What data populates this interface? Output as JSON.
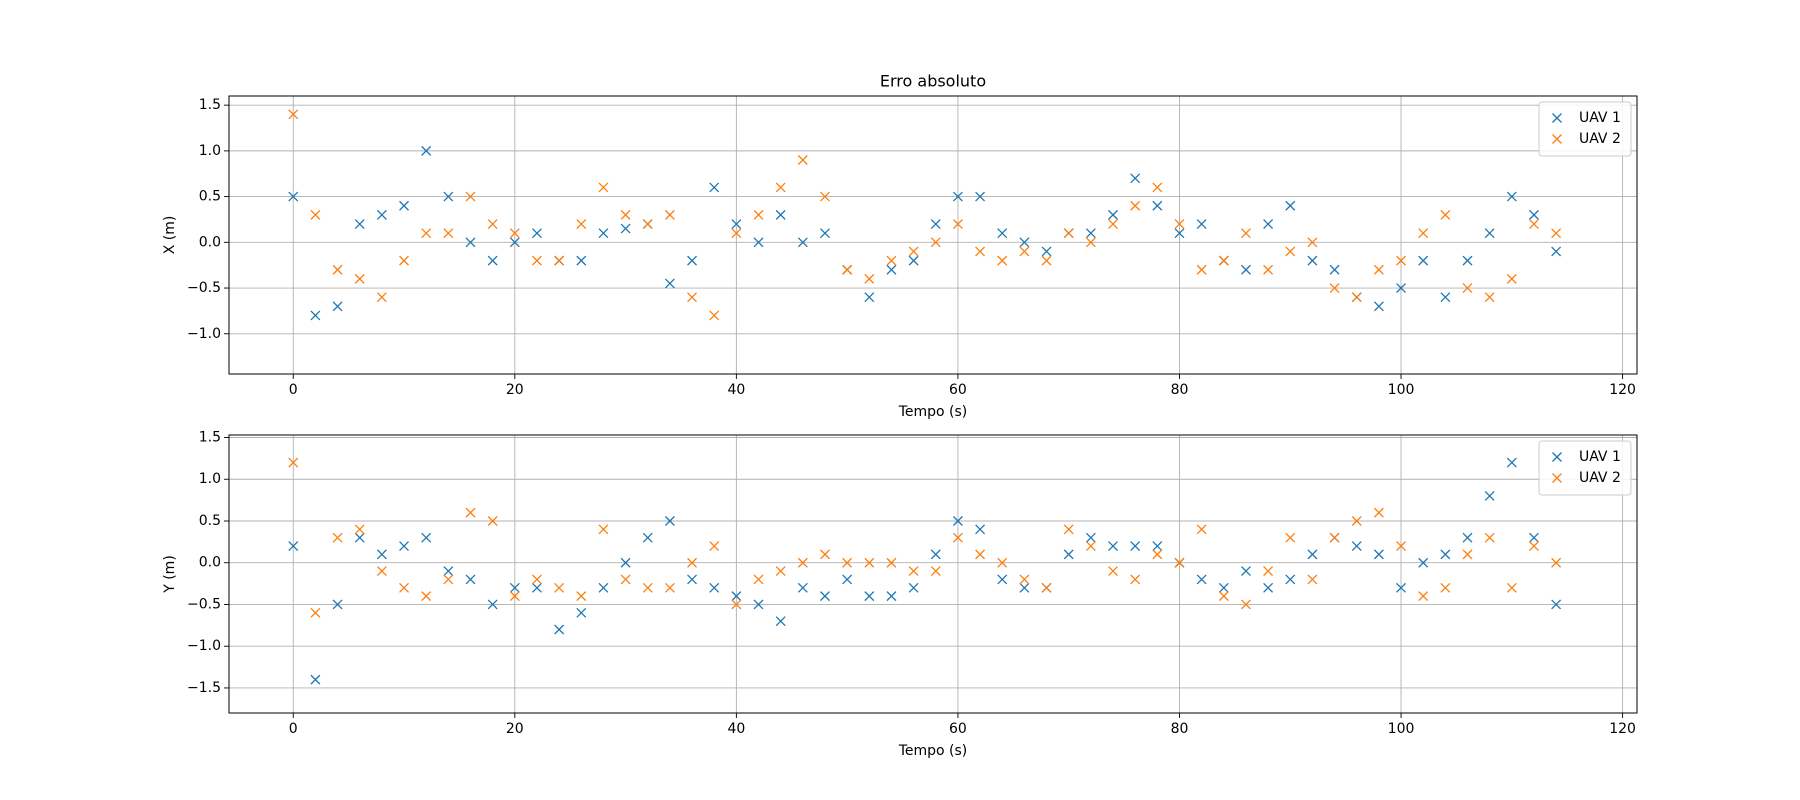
{
  "chart_data": [
    {
      "type": "scatter",
      "title": "Erro absoluto",
      "xlabel": "Tempo (s)",
      "ylabel": "X (m)",
      "x": [
        0,
        2,
        4,
        6,
        8,
        10,
        12,
        14,
        16,
        18,
        20,
        22,
        24,
        26,
        28,
        30,
        32,
        34,
        36,
        38,
        40,
        42,
        44,
        46,
        48,
        50,
        52,
        54,
        56,
        58,
        60,
        62,
        64,
        66,
        68,
        70,
        72,
        74,
        76,
        78,
        80,
        82,
        84,
        86,
        88,
        90,
        92,
        94,
        96,
        98,
        100,
        102,
        104,
        106,
        108,
        110,
        112,
        114
      ],
      "series": [
        {
          "name": "UAV 1",
          "color": "#1f77b4",
          "values": [
            0.5,
            -0.8,
            -0.7,
            0.2,
            0.3,
            0.4,
            1.0,
            0.5,
            0.0,
            -0.2,
            0.0,
            0.1,
            -0.2,
            -0.2,
            0.1,
            0.15,
            0.2,
            -0.45,
            -0.2,
            0.6,
            0.2,
            0.0,
            0.3,
            0.0,
            0.1,
            -0.3,
            -0.6,
            -0.3,
            -0.2,
            0.2,
            0.5,
            0.5,
            0.1,
            0.0,
            -0.1,
            0.1,
            0.1,
            0.3,
            0.7,
            0.4,
            0.1,
            0.2,
            -0.2,
            -0.3,
            0.2,
            0.4,
            -0.2,
            -0.3,
            -0.6,
            -0.7,
            -0.5,
            -0.2,
            -0.6,
            -0.2,
            0.1,
            0.5,
            0.3,
            -0.1
          ]
        },
        {
          "name": "UAV 2",
          "color": "#ff7f0e",
          "values": [
            1.4,
            0.3,
            -0.3,
            -0.4,
            -0.6,
            -0.2,
            0.1,
            0.1,
            0.5,
            0.2,
            0.1,
            -0.2,
            -0.2,
            0.2,
            0.6,
            0.3,
            0.2,
            0.3,
            -0.6,
            -0.8,
            0.1,
            0.3,
            0.6,
            0.9,
            0.5,
            -0.3,
            -0.4,
            -0.2,
            -0.1,
            0.0,
            0.2,
            -0.1,
            -0.2,
            -0.1,
            -0.2,
            0.1,
            0.0,
            0.2,
            0.4,
            0.6,
            0.2,
            -0.3,
            -0.2,
            0.1,
            -0.3,
            -0.1,
            0.0,
            -0.5,
            -0.6,
            -0.3,
            -0.2,
            0.1,
            0.3,
            -0.5,
            -0.6,
            -0.4,
            0.2,
            0.1
          ]
        }
      ],
      "xlim": [
        -5.8,
        121.3
      ],
      "ylim": [
        -1.44,
        1.6
      ],
      "xticks": [
        0,
        20,
        40,
        60,
        80,
        100,
        120
      ],
      "yticks": [
        {
          "value": -1.0,
          "label": "−1.0"
        },
        {
          "value": -0.5,
          "label": "−0.5"
        },
        {
          "value": 0,
          "label": "0.0"
        },
        0.5,
        {
          "value": 1.0,
          "label": "1.0"
        },
        1.5
      ],
      "grid": true,
      "legend": "upper right"
    },
    {
      "type": "scatter",
      "xlabel": "Tempo (s)",
      "ylabel": "Y (m)",
      "x": [
        0,
        2,
        4,
        6,
        8,
        10,
        12,
        14,
        16,
        18,
        20,
        22,
        24,
        26,
        28,
        30,
        32,
        34,
        36,
        38,
        40,
        42,
        44,
        46,
        48,
        50,
        52,
        54,
        56,
        58,
        60,
        62,
        64,
        66,
        68,
        70,
        72,
        74,
        76,
        78,
        80,
        82,
        84,
        86,
        88,
        90,
        92,
        94,
        96,
        98,
        100,
        102,
        104,
        106,
        108,
        110,
        112,
        114
      ],
      "series": [
        {
          "name": "UAV 1",
          "color": "#1f77b4",
          "values": [
            0.2,
            -1.4,
            -0.5,
            0.3,
            0.1,
            0.2,
            0.3,
            -0.1,
            -0.2,
            -0.5,
            -0.3,
            -0.3,
            -0.8,
            -0.6,
            -0.3,
            0.0,
            0.3,
            0.5,
            -0.2,
            -0.3,
            -0.4,
            -0.5,
            -0.7,
            -0.3,
            -0.4,
            -0.2,
            -0.4,
            -0.4,
            -0.3,
            0.1,
            0.5,
            0.4,
            -0.2,
            -0.3,
            -0.3,
            0.1,
            0.3,
            0.2,
            0.2,
            0.2,
            0.0,
            -0.2,
            -0.3,
            -0.1,
            -0.3,
            -0.2,
            0.1,
            0.3,
            0.2,
            0.1,
            -0.3,
            0.0,
            0.1,
            0.3,
            0.8,
            1.2,
            0.3,
            -0.5
          ]
        },
        {
          "name": "UAV 2",
          "color": "#ff7f0e",
          "values": [
            1.2,
            -0.6,
            0.3,
            0.4,
            -0.1,
            -0.3,
            -0.4,
            -0.2,
            0.6,
            0.5,
            -0.4,
            -0.2,
            -0.3,
            -0.4,
            0.4,
            -0.2,
            -0.3,
            -0.3,
            0.0,
            0.2,
            -0.5,
            -0.2,
            -0.1,
            0.0,
            0.1,
            0.0,
            0.0,
            0.0,
            -0.1,
            -0.1,
            0.3,
            0.1,
            0.0,
            -0.2,
            -0.3,
            0.4,
            0.2,
            -0.1,
            -0.2,
            0.1,
            0.0,
            0.4,
            -0.4,
            -0.5,
            -0.1,
            0.3,
            -0.2,
            0.3,
            0.5,
            0.6,
            0.2,
            -0.4,
            -0.3,
            0.1,
            0.3,
            -0.3,
            0.2,
            0.0
          ]
        }
      ],
      "xlim": [
        -5.8,
        121.3
      ],
      "ylim": [
        -1.8,
        1.53
      ],
      "xticks": [
        0,
        20,
        40,
        60,
        80,
        100,
        120
      ],
      "yticks": [
        {
          "value": -1.5,
          "label": "−1.5"
        },
        {
          "value": -1.0,
          "label": "−1.0"
        },
        {
          "value": -0.5,
          "label": "−0.5"
        },
        {
          "value": 0,
          "label": "0.0"
        },
        0.5,
        {
          "value": 1.0,
          "label": "1.0"
        },
        1.5
      ],
      "grid": true,
      "legend": "upper right"
    }
  ]
}
